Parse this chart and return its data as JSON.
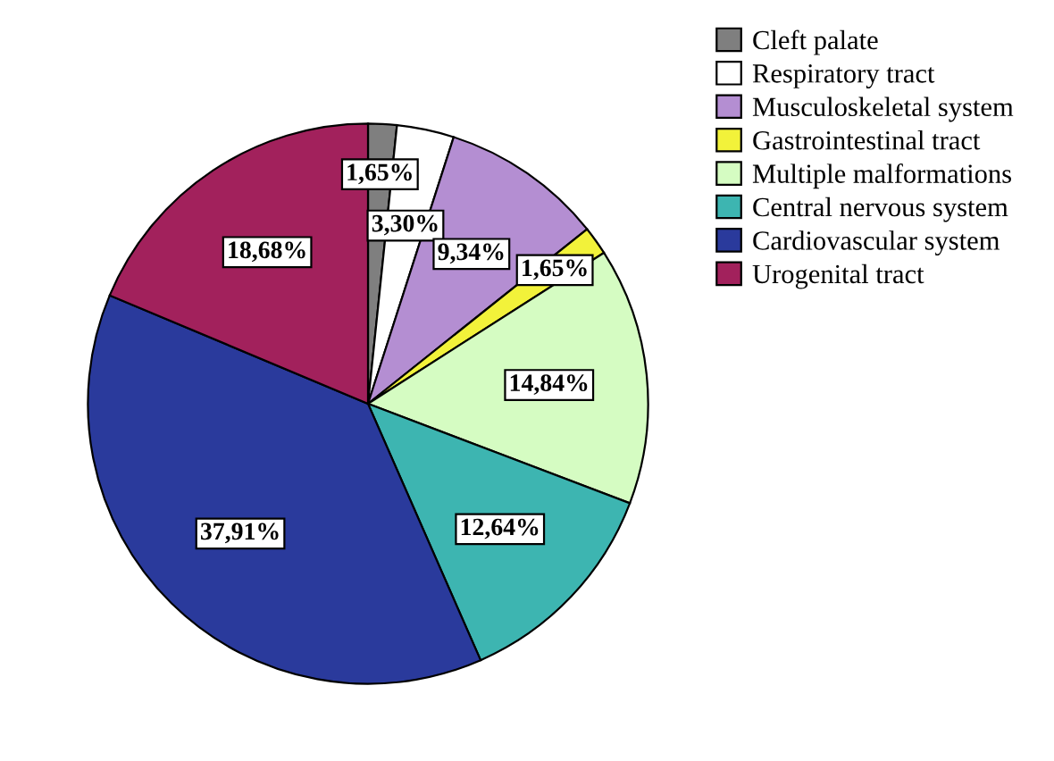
{
  "chart_data": {
    "type": "pie",
    "legend": "top right",
    "categories": [
      "Cleft palate",
      "Respiratory tract",
      "Musculoskeletal system",
      "Gastrointestinal tract",
      "Multiple malformations",
      "Central nervous system",
      "Cardiovascular system",
      "Urogenital tract"
    ],
    "values": [
      1.65,
      3.3,
      9.34,
      1.65,
      14.84,
      12.64,
      37.91,
      18.68
    ],
    "value_labels": [
      "1,65%",
      "3,30%",
      "9,34%",
      "1,65%",
      "14,84%",
      "12,64%",
      "37,91%",
      "18,68%"
    ],
    "colors": [
      "#7f7f7f",
      "#ffffff",
      "#b48ed2",
      "#f2f23a",
      "#d5fcc2",
      "#3db5b1",
      "#2a3a9c",
      "#a2215c"
    ]
  }
}
